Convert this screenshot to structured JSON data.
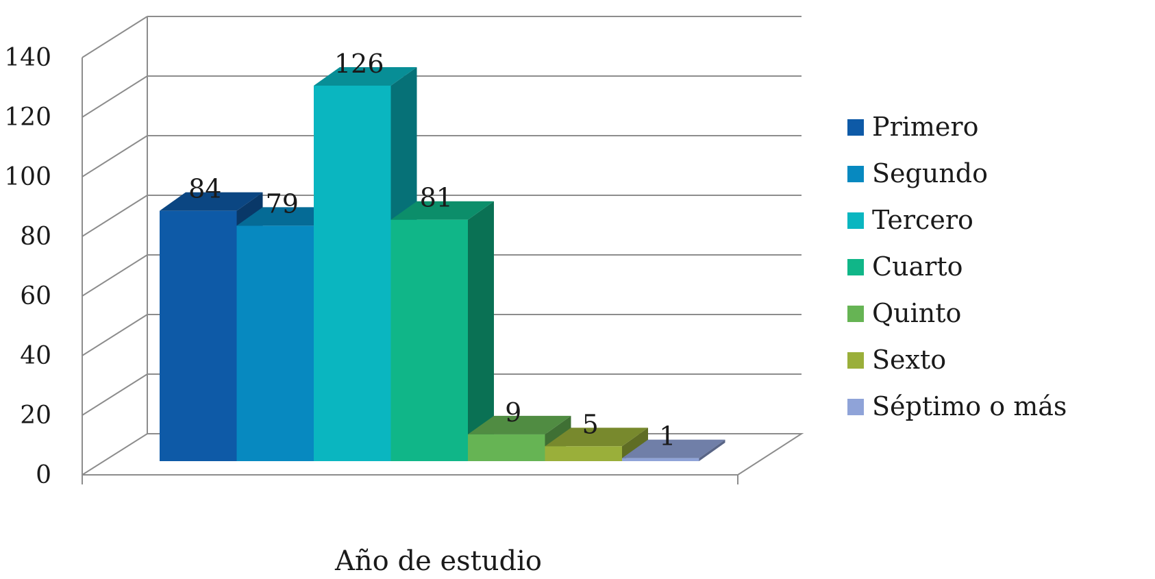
{
  "chart_data": {
    "type": "bar",
    "title": "",
    "xlabel": "Año de estudio",
    "ylabel": "",
    "ylim": [
      0,
      140
    ],
    "yticks": [
      0,
      20,
      40,
      60,
      80,
      100,
      120,
      140
    ],
    "categories": [
      "Año de estudio"
    ],
    "grid": true,
    "legend_position": "right",
    "series": [
      {
        "name": "Primero",
        "values": [
          84
        ],
        "color": "#0e5aa7"
      },
      {
        "name": "Segundo",
        "values": [
          79
        ],
        "color": "#0789c0"
      },
      {
        "name": "Tercero",
        "values": [
          126
        ],
        "color": "#0ab6c0"
      },
      {
        "name": "Cuarto",
        "values": [
          81
        ],
        "color": "#10b688"
      },
      {
        "name": "Quinto",
        "values": [
          9
        ],
        "color": "#66b454"
      },
      {
        "name": "Sexto",
        "values": [
          5
        ],
        "color": "#9aaf3a"
      },
      {
        "name": "Séptimo o más",
        "values": [
          1
        ],
        "color": "#8fa3d8"
      }
    ]
  }
}
